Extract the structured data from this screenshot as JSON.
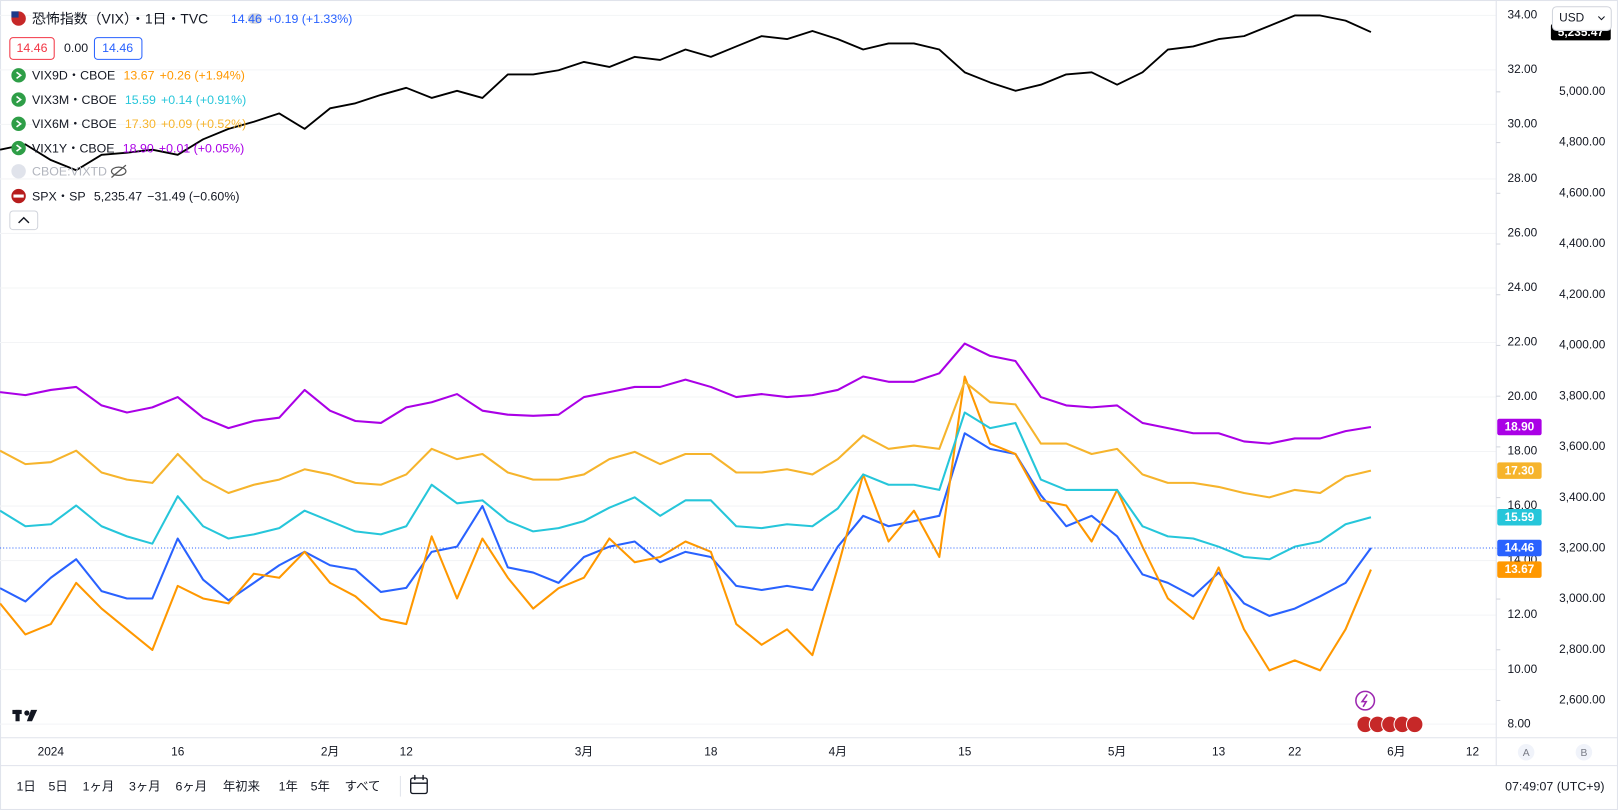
{
  "header": {
    "bid": "14.46",
    "spread": "0.00",
    "ask": "14.46",
    "hidden_series": "CBOE:VIXTD",
    "currency": "USD"
  },
  "toolbar": {
    "ranges": [
      "1日",
      "5日",
      "1ヶ月",
      "3ヶ月",
      "6ヶ月",
      "年初来",
      "1年",
      "5年",
      "すべて"
    ],
    "time": "07:49:07 (UTC+9)",
    "scale_buttons": [
      "A",
      "B"
    ]
  },
  "chart_data": {
    "type": "line",
    "grid": true,
    "categories": [
      null,
      null,
      "2024",
      null,
      null,
      null,
      null,
      "16",
      null,
      null,
      null,
      null,
      null,
      "2月",
      null,
      null,
      "12",
      null,
      null,
      null,
      null,
      null,
      null,
      "3月",
      null,
      null,
      null,
      null,
      "18",
      null,
      null,
      null,
      null,
      "4月",
      null,
      null,
      null,
      null,
      "15",
      null,
      null,
      null,
      null,
      null,
      "5月",
      null,
      null,
      null,
      "13",
      null,
      null,
      "22",
      null,
      null,
      null,
      "6月",
      null,
      null,
      "12"
    ],
    "ylim": [
      7.5,
      34.45
    ],
    "yticks": [
      {
        "value": 8,
        "label": "8.00"
      },
      {
        "value": 10,
        "label": "10.00"
      },
      {
        "value": 12,
        "label": "12.00"
      },
      {
        "value": 14,
        "label": "14.00"
      },
      {
        "value": 16,
        "label": "16.00"
      },
      {
        "value": 18,
        "label": "18.00"
      },
      {
        "value": 20,
        "label": "20.00"
      },
      {
        "value": 22,
        "label": "22.00"
      },
      {
        "value": 24,
        "label": "24.00"
      },
      {
        "value": 26,
        "label": "26.00"
      },
      {
        "value": 28,
        "label": "28.00"
      },
      {
        "value": 30,
        "label": "30.00"
      },
      {
        "value": 32,
        "label": "32.00"
      },
      {
        "value": 34,
        "label": "34.00"
      }
    ],
    "y2lim": [
      2453,
      5350
    ],
    "y2ticks": [
      {
        "value": 2600,
        "label": "2,600.00"
      },
      {
        "value": 2800,
        "label": "2,800.00"
      },
      {
        "value": 3000,
        "label": "3,000.00"
      },
      {
        "value": 3200,
        "label": "3,200.00"
      },
      {
        "value": 3400,
        "label": "3,400.00"
      },
      {
        "value": 3600,
        "label": "3,600.00"
      },
      {
        "value": 3800,
        "label": "3,800.00"
      },
      {
        "value": 4000,
        "label": "4,000.00"
      },
      {
        "value": 4200,
        "label": "4,200.00"
      },
      {
        "value": 4400,
        "label": "4,400.00"
      },
      {
        "value": 4600,
        "label": "4,600.00"
      },
      {
        "value": 4800,
        "label": "4,800.00"
      },
      {
        "value": 5000,
        "label": "5,000.00"
      }
    ],
    "series": [
      {
        "name": "恐怖指数（VIX）・1日・TVC",
        "color": "#2962ff",
        "last_label": "14.46",
        "change": "+0.19 (+1.33%)",
        "values": [
          12.99,
          12.5,
          13.37,
          14.05,
          12.88,
          12.61,
          12.61,
          14.81,
          13.3,
          12.54,
          13.18,
          13.83,
          14.32,
          13.83,
          13.67,
          12.85,
          13.0,
          14.32,
          14.51,
          16.0,
          13.75,
          13.56,
          13.18,
          14.13,
          14.51,
          14.7,
          13.94,
          14.32,
          14.13,
          13.07,
          12.92,
          13.07,
          12.92,
          14.51,
          15.64,
          15.26,
          15.45,
          15.64,
          18.67,
          18.1,
          17.91,
          16.4,
          15.26,
          15.64,
          14.89,
          13.49,
          13.18,
          12.69,
          13.56,
          12.43,
          11.97,
          12.24,
          12.69,
          13.18,
          14.46,
          null,
          null,
          null,
          null
        ]
      },
      {
        "name": "VIX9D・CBOE",
        "color": "#ff9800",
        "last_label": "13.67",
        "change": "+0.26 (+1.94%)",
        "values": [
          12.43,
          11.29,
          11.67,
          13.18,
          12.24,
          11.48,
          10.72,
          13.07,
          12.61,
          12.43,
          13.52,
          13.37,
          14.32,
          13.18,
          12.69,
          11.86,
          11.67,
          14.89,
          12.61,
          14.81,
          13.37,
          12.24,
          12.99,
          13.37,
          14.81,
          13.94,
          14.13,
          14.7,
          14.32,
          11.67,
          10.91,
          11.48,
          10.53,
          13.75,
          17.16,
          14.7,
          15.83,
          14.13,
          20.75,
          18.29,
          17.91,
          16.21,
          16.02,
          14.7,
          16.59,
          14.51,
          12.61,
          11.86,
          13.75,
          11.48,
          9.97,
          10.34,
          9.97,
          11.48,
          13.67,
          null,
          null,
          null,
          null
        ]
      },
      {
        "name": "VIX3M・CBOE",
        "color": "#26c6da",
        "last_label": "15.59",
        "change": "+0.14 (+0.91%)",
        "values": [
          15.83,
          15.26,
          15.33,
          16.02,
          15.26,
          14.89,
          14.62,
          16.36,
          15.26,
          14.81,
          14.96,
          15.19,
          15.83,
          15.45,
          15.07,
          14.96,
          15.26,
          16.78,
          16.1,
          16.21,
          15.45,
          15.07,
          15.19,
          15.45,
          15.94,
          16.32,
          15.64,
          16.21,
          16.21,
          15.26,
          15.19,
          15.33,
          15.26,
          15.91,
          17.16,
          16.78,
          16.78,
          16.59,
          19.43,
          18.86,
          19.05,
          16.97,
          16.59,
          16.59,
          16.59,
          15.26,
          14.89,
          14.81,
          14.51,
          14.13,
          14.05,
          14.51,
          14.7,
          15.33,
          15.59,
          null,
          null,
          null,
          null
        ]
      },
      {
        "name": "VIX6M・CBOE",
        "color": "#f6b42c",
        "last_label": "17.30",
        "change": "+0.09 (+0.52%)",
        "values": [
          18.03,
          17.54,
          17.61,
          18.03,
          17.23,
          16.97,
          16.85,
          17.91,
          16.97,
          16.48,
          16.78,
          16.97,
          17.35,
          17.16,
          16.85,
          16.78,
          17.16,
          18.1,
          17.72,
          17.91,
          17.23,
          16.97,
          16.97,
          17.16,
          17.72,
          17.99,
          17.54,
          17.91,
          17.91,
          17.23,
          17.23,
          17.35,
          17.16,
          17.72,
          18.59,
          18.1,
          18.22,
          18.1,
          20.56,
          19.81,
          19.73,
          18.29,
          18.29,
          17.91,
          18.1,
          17.16,
          16.85,
          16.85,
          16.7,
          16.48,
          16.32,
          16.59,
          16.48,
          17.08,
          17.3,
          null,
          null,
          null,
          null
        ]
      },
      {
        "name": "VIX1Y・CBOE",
        "color": "#aa00e6",
        "last_label": "18.90",
        "change": "+0.01 (+0.05%)",
        "values": [
          20.18,
          20.07,
          20.26,
          20.37,
          19.69,
          19.43,
          19.62,
          20.0,
          19.24,
          18.86,
          19.12,
          19.24,
          20.26,
          19.5,
          19.12,
          19.05,
          19.62,
          19.81,
          20.11,
          19.5,
          19.35,
          19.31,
          19.35,
          20.0,
          20.18,
          20.37,
          20.37,
          20.64,
          20.37,
          20.0,
          20.11,
          20.0,
          20.07,
          20.26,
          20.75,
          20.56,
          20.56,
          20.87,
          21.96,
          21.51,
          21.32,
          20.0,
          19.69,
          19.62,
          19.69,
          19.05,
          18.86,
          18.67,
          18.67,
          18.37,
          18.29,
          18.48,
          18.48,
          18.75,
          18.9,
          null,
          null,
          null,
          null
        ]
      },
      {
        "name": "SPX・SP",
        "color": "#000000",
        "axis": "y2",
        "last_label": "5,235.47",
        "change": "−31.49 (−0.60%)",
        "values": [
          4772,
          4793,
          4731,
          4691,
          4752,
          4760,
          4772,
          4752,
          4813,
          4854,
          4882,
          4915,
          4854,
          4935,
          4955,
          4988,
          5016,
          4976,
          5004,
          4976,
          5069,
          5069,
          5085,
          5118,
          5098,
          5138,
          5126,
          5167,
          5138,
          5179,
          5220,
          5208,
          5240,
          5208,
          5167,
          5191,
          5191,
          5167,
          5077,
          5037,
          5004,
          5028,
          5069,
          5077,
          5028,
          5077,
          5167,
          5179,
          5208,
          5220,
          5260,
          5301,
          5301,
          5281,
          5235.47,
          null,
          null,
          null,
          null
        ]
      }
    ]
  }
}
